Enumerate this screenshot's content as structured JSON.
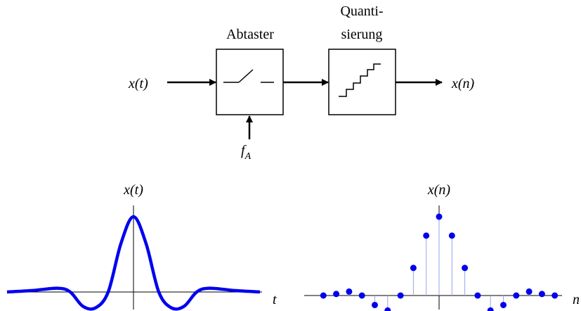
{
  "diagram": {
    "input_label": "x(t)",
    "output_label": "x(n)",
    "sampler": {
      "title": "Abtaster"
    },
    "quantizer": {
      "title_line1": "Quanti-",
      "title_line2": "sierung"
    },
    "sampling_freq": {
      "base": "f",
      "sub": "A"
    }
  },
  "plots": {
    "continuous": {
      "title": "x(t)",
      "xaxis_label": "t"
    },
    "discrete": {
      "title": "x(n)",
      "xaxis_label": "n"
    }
  },
  "colors": {
    "signal": "#0000ee",
    "stem": "#9aa3f0",
    "ink": "#000000"
  },
  "chart_data": [
    {
      "type": "line",
      "title": "x(t)",
      "xlabel": "t",
      "ylabel": "",
      "description": "continuous sinc-shaped pulse",
      "x": [
        -10,
        -8,
        -6,
        -5,
        -4,
        -3,
        -2,
        -1,
        0,
        1,
        2,
        3,
        4,
        5,
        6,
        8,
        10
      ],
      "y": [
        0.0,
        0.02,
        0.05,
        0.0,
        -0.19,
        -0.21,
        0.0,
        0.64,
        1.0,
        0.64,
        0.0,
        -0.21,
        -0.19,
        0.0,
        0.05,
        0.02,
        0.0
      ]
    },
    {
      "type": "scatter",
      "title": "x(n)",
      "xlabel": "n",
      "ylabel": "",
      "description": "sampled sequence (stem plot)",
      "x": [
        -9,
        -8,
        -7,
        -6,
        -5,
        -4,
        -3,
        -2,
        -1,
        0,
        1,
        2,
        3,
        4,
        5,
        6,
        7,
        8,
        9
      ],
      "y": [
        0.0,
        0.02,
        0.05,
        0.0,
        -0.12,
        -0.19,
        0.0,
        0.35,
        0.76,
        1.0,
        0.76,
        0.35,
        0.0,
        -0.19,
        -0.12,
        0.0,
        0.05,
        0.02,
        0.0
      ]
    }
  ]
}
